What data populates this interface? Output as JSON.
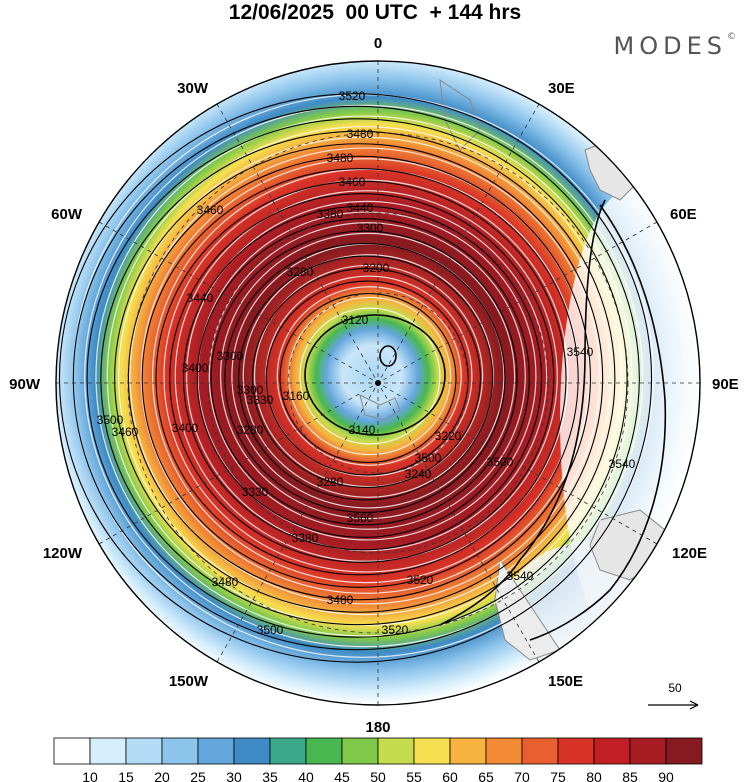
{
  "title": "12/06/2025  00 UTC  + 144 hrs",
  "brand": "MODES",
  "brand_mark": "©",
  "longitude_labels": {
    "n": "0",
    "nne": "30E",
    "ene": "60E",
    "e": "90E",
    "ese": "120E",
    "sse": "150E",
    "s": "180",
    "ssw": "150W",
    "wsw": "120W",
    "w": "90W",
    "wnw": "60W",
    "nnw": "30W"
  },
  "contour_labels": [
    "3520",
    "3480",
    "3480",
    "3460",
    "3440",
    "3380",
    "3300",
    "3280",
    "3200",
    "3120",
    "3140",
    "3160",
    "3220",
    "3240",
    "3280",
    "3300",
    "3330",
    "3380",
    "3400",
    "3440",
    "3460",
    "3500",
    "3520",
    "3540",
    "3540",
    "3540",
    "3500",
    "3480",
    "3480",
    "3500",
    "3520",
    "3460",
    "3400",
    "3330",
    "3300",
    "3280",
    "3560",
    "3500"
  ],
  "reference_vector": {
    "value": "50"
  },
  "colorbar": {
    "ticks": [
      "10",
      "15",
      "20",
      "25",
      "30",
      "35",
      "40",
      "45",
      "50",
      "55",
      "60",
      "65",
      "70",
      "75",
      "80",
      "85",
      "90"
    ],
    "colors": [
      "#ffffff",
      "#d6eefc",
      "#b3dcf7",
      "#8dc4ec",
      "#63a6dc",
      "#3f8bc6",
      "#3aa98a",
      "#49b74f",
      "#7fc94a",
      "#c5dc4e",
      "#f6e04f",
      "#f7b23f",
      "#f28a36",
      "#ea5f2f",
      "#d93327",
      "#c21f25",
      "#a81c24",
      "#861a20"
    ]
  }
}
